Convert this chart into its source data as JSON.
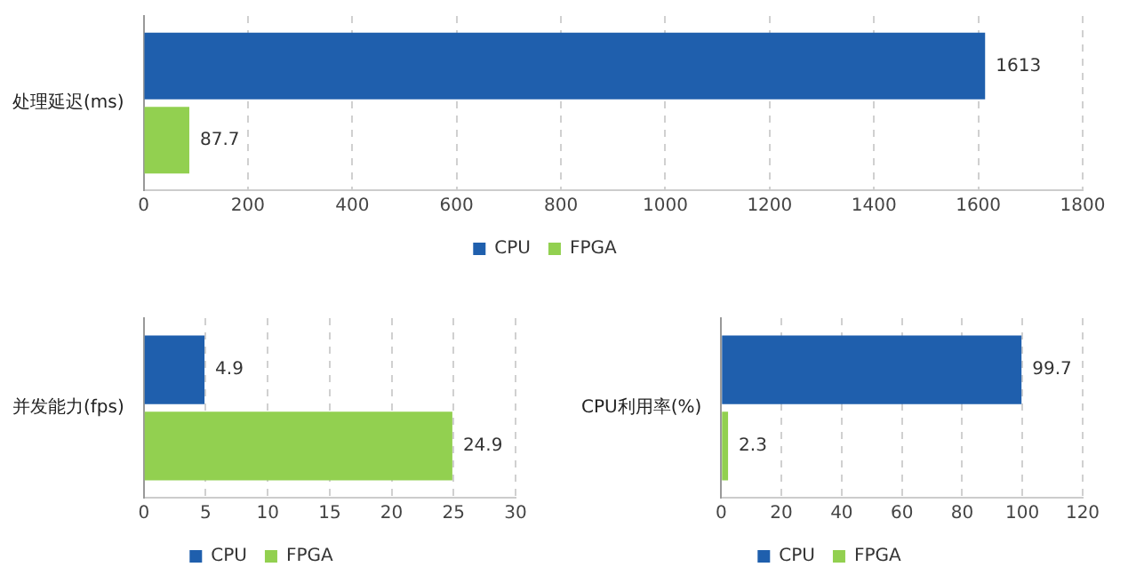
{
  "chart_data": [
    {
      "type": "bar",
      "orientation": "horizontal",
      "categories": [
        "处理延迟(ms)"
      ],
      "series": [
        {
          "name": "CPU",
          "color": "#1f5fad",
          "values": [
            1613
          ]
        },
        {
          "name": "FPGA",
          "color": "#92d050",
          "values": [
            87.7
          ]
        }
      ],
      "xlim": [
        0,
        1800
      ],
      "xticks": [
        0,
        200,
        400,
        600,
        800,
        1000,
        1200,
        1400,
        1600,
        1800
      ],
      "grid": "x",
      "legend": "bottom",
      "data_labels": true
    },
    {
      "type": "bar",
      "orientation": "horizontal",
      "categories": [
        "并发能力(fps)"
      ],
      "series": [
        {
          "name": "CPU",
          "color": "#1f5fad",
          "values": [
            4.9
          ]
        },
        {
          "name": "FPGA",
          "color": "#92d050",
          "values": [
            24.9
          ]
        }
      ],
      "xlim": [
        0,
        30
      ],
      "xticks": [
        0,
        5,
        10,
        15,
        20,
        25,
        30
      ],
      "grid": "x",
      "legend": "bottom",
      "data_labels": true
    },
    {
      "type": "bar",
      "orientation": "horizontal",
      "categories": [
        "CPU利用率(%)"
      ],
      "series": [
        {
          "name": "CPU",
          "color": "#1f5fad",
          "values": [
            99.7
          ]
        },
        {
          "name": "FPGA",
          "color": "#92d050",
          "values": [
            2.3
          ]
        }
      ],
      "xlim": [
        0,
        120
      ],
      "xticks": [
        0,
        20,
        40,
        60,
        80,
        100,
        120
      ],
      "grid": "x",
      "legend": "bottom",
      "data_labels": true
    }
  ]
}
